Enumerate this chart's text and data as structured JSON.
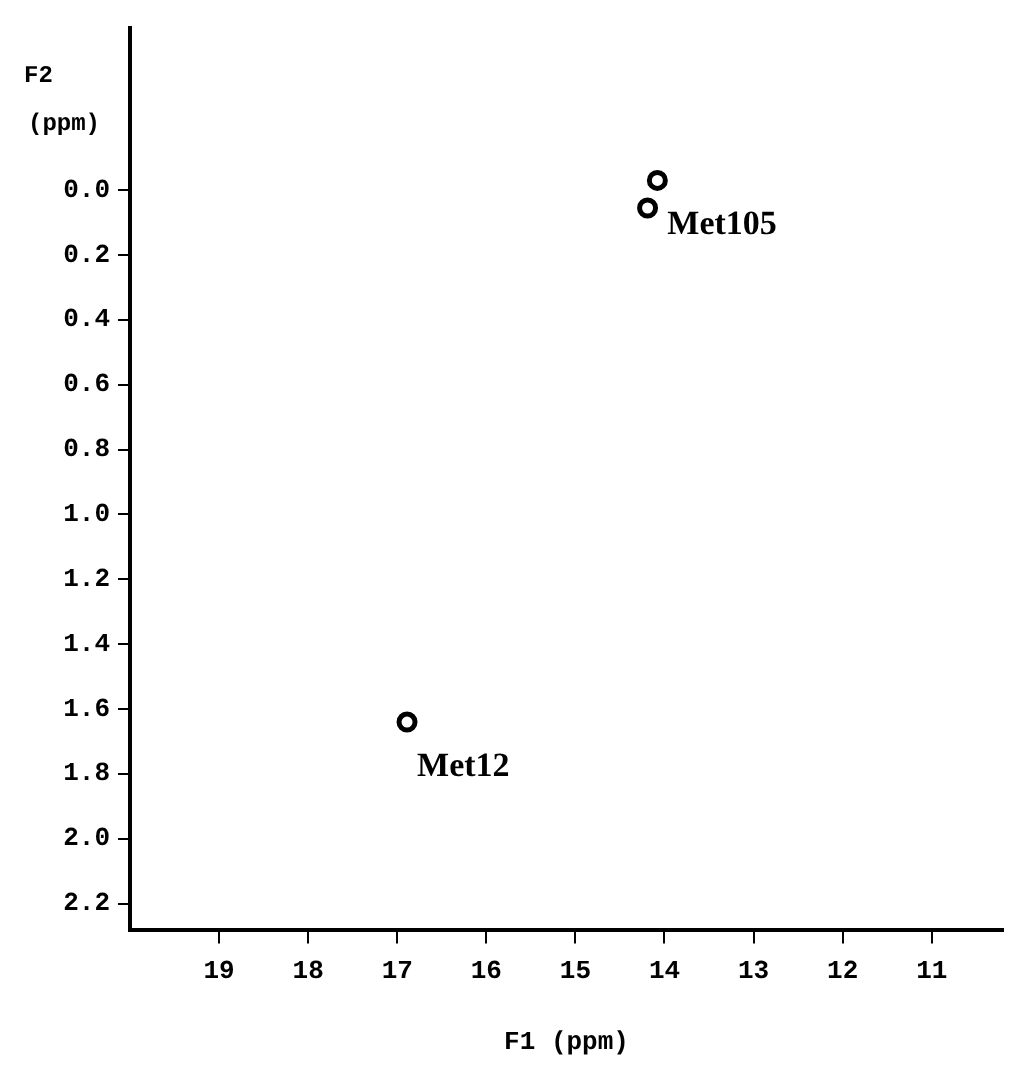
{
  "chart_data": {
    "type": "scatter",
    "xlabel": "F1 (ppm)",
    "ylabel": "F2 (ppm)",
    "series": [
      {
        "color": "#000000",
        "x": [
          14.08,
          14.19,
          16.89
        ],
        "values": [
          -0.03,
          0.055,
          1.64
        ]
      }
    ],
    "marker": "circle",
    "grid": false,
    "legend": false,
    "xlim": [
      20,
      10.2
    ],
    "xticks": [
      19,
      18,
      17,
      16,
      15,
      14,
      13,
      12,
      11
    ],
    "ylim": [
      2.28,
      -0.5
    ],
    "yticks": [
      {
        "value": 0,
        "label": "0.0"
      },
      {
        "value": 0.2,
        "label": "0.2"
      },
      {
        "value": 0.4,
        "label": "0.4"
      },
      {
        "value": 0.6,
        "label": "0.6"
      },
      {
        "value": 0.8,
        "label": "0.8"
      },
      {
        "value": 1,
        "label": "1.0"
      },
      {
        "value": 1.2,
        "label": "1.2"
      },
      {
        "value": 1.4,
        "label": "1.4"
      },
      {
        "value": 1.6,
        "label": "1.6"
      },
      {
        "value": 1.8,
        "label": "1.8"
      },
      {
        "value": 2,
        "label": "2.0"
      },
      {
        "value": 2.2,
        "label": "2.2"
      }
    ],
    "annotations": [
      {
        "text": "Met105",
        "x": 14.08,
        "y": -0.03
      },
      {
        "text": "Met12",
        "x": 16.89,
        "y": 1.64
      }
    ]
  }
}
